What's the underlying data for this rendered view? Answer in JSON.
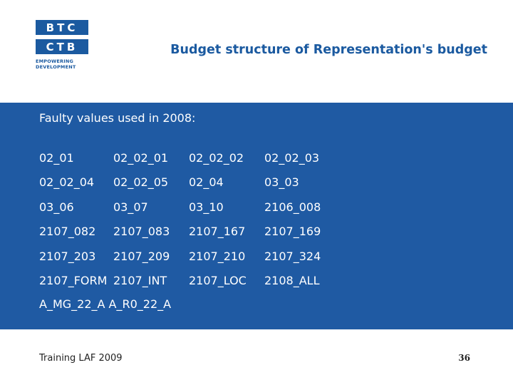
{
  "logo": {
    "line1": "BTC",
    "line2": "CTB",
    "tagline1": "EMPOWERING",
    "tagline2": "DEVELOPMENT"
  },
  "title": "Budget structure of Representation's budget",
  "band": {
    "heading": "Faulty values used in 2008:",
    "rows": [
      [
        "02_01",
        "02_02_01",
        "02_02_02",
        "02_02_03"
      ],
      [
        "02_02_04",
        "02_02_05",
        "02_04",
        "03_03"
      ],
      [
        "03_06",
        "03_07",
        "03_10",
        "2106_008"
      ],
      [
        "2107_082",
        "2107_083",
        "2107_167",
        "2107_169"
      ],
      [
        "2107_203",
        "2107_209",
        "2107_210",
        "2107_324"
      ],
      [
        "2107_FORM",
        "2107_INT",
        "2107_LOC",
        "2108_ALL"
      ]
    ],
    "last_line": "A_MG_22_A A_R0_22_A"
  },
  "footer": {
    "left": "Training LAF 2009",
    "page_number": "36"
  },
  "colors": {
    "brand_blue": "#1b5aa0",
    "band_blue": "#1f5aa3"
  }
}
